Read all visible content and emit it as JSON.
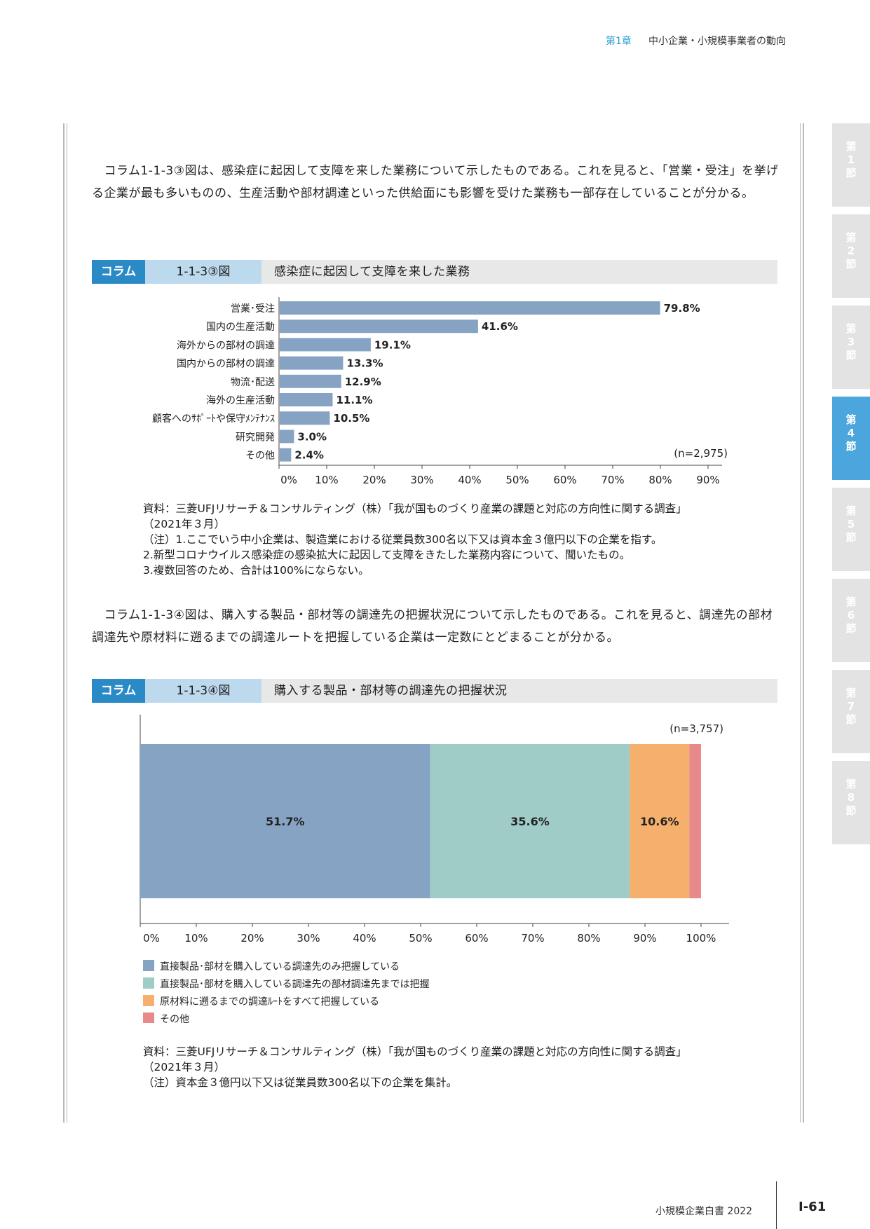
{
  "header": {
    "chapter": "第1章",
    "title": "中小企業・小規模事業者の動向"
  },
  "side_tabs": [
    {
      "label": "第\n1\n節",
      "active": false
    },
    {
      "label": "第\n2\n節",
      "active": false
    },
    {
      "label": "第\n3\n節",
      "active": false
    },
    {
      "label": "第\n4\n節",
      "active": true
    },
    {
      "label": "第\n5\n節",
      "active": false
    },
    {
      "label": "第\n6\n節",
      "active": false
    },
    {
      "label": "第\n7\n節",
      "active": false
    },
    {
      "label": "第\n8\n節",
      "active": false
    }
  ],
  "para1": "　コラム1-1-3③図は、感染症に起因して支障を来した業務について示したものである。これを見ると、「営業・受注」を挙げる企業が最も多いものの、生産活動や部材調達といった供給面にも影響を受けた業務も一部存在していることが分かる。",
  "fig1": {
    "tag": "コラム",
    "number": "1-1-3③図",
    "title": "感染症に起因して支障を来した業務",
    "n_label": "(n=2,975)",
    "notes": [
      "資料：三菱UFJリサーチ＆コンサルティング（株）「我が国ものづくり産業の課題と対応の方向性に関する調査」",
      "（2021年３月）",
      "（注）1.ここでいう中小企業は、製造業における従業員数300名以下又は資本金３億円以下の企業を指す。",
      "2.新型コロナウイルス感染症の感染拡大に起因して支障をきたした業務内容について、聞いたもの。",
      "3.複数回答のため、合計は100%にならない。"
    ]
  },
  "para2": "　コラム1-1-3④図は、購入する製品・部材等の調達先の把握状況について示したものである。これを見ると、調達先の部材調達先や原材料に遡るまでの調達ルートを把握している企業は一定数にとどまることが分かる。",
  "fig2": {
    "tag": "コラム",
    "number": "1-1-3④図",
    "title": "購入する製品・部材等の調達先の把握状況",
    "n_label": "(n=3,757)",
    "notes": [
      "資料：三菱UFJリサーチ＆コンサルティング（株）「我が国ものづくり産業の課題と対応の方向性に関する調査」",
      "（2021年３月）",
      "（注）資本金３億円以下又は従業員数300名以下の企業を集計。"
    ]
  },
  "chart_data": [
    {
      "type": "bar",
      "orientation": "horizontal",
      "categories": [
        "営業･受注",
        "国内の生産活動",
        "海外からの部材の調達",
        "国内からの部材の調達",
        "物流･配送",
        "海外の生産活動",
        "顧客へのｻﾎﾟｰﾄや保守ﾒﾝﾃﾅﾝｽ",
        "研究開発",
        "その他"
      ],
      "values": [
        79.8,
        41.6,
        19.1,
        13.3,
        12.9,
        11.1,
        10.5,
        3.0,
        2.4
      ],
      "value_labels": [
        "79.8%",
        "41.6%",
        "19.1%",
        "13.3%",
        "12.9%",
        "11.1%",
        "10.5%",
        "3.0%",
        "2.4%"
      ],
      "xlim": [
        0,
        90
      ],
      "xticks": [
        "0%",
        "10%",
        "20%",
        "30%",
        "40%",
        "50%",
        "60%",
        "70%",
        "80%",
        "90%"
      ],
      "color": "#86a3c4"
    },
    {
      "type": "bar",
      "orientation": "horizontal-stacked-100",
      "series": [
        {
          "name": "直接製品･部材を購入している調達先のみ把握している",
          "value": 51.7,
          "label": "51.7%",
          "color": "#86a3c4"
        },
        {
          "name": "直接製品･部材を購入している調達先の部材調達先までは把握",
          "value": 35.6,
          "label": "35.6%",
          "color": "#a0ccc8"
        },
        {
          "name": "原材料に遡るまでの調達ﾙｰﾄをすべて把握している",
          "value": 10.6,
          "label": "10.6%",
          "color": "#f4b06c"
        },
        {
          "name": "その他",
          "value": 2.1,
          "label": "",
          "color": "#e88a8a"
        }
      ],
      "xlim": [
        0,
        100
      ],
      "xticks": [
        "0%",
        "10%",
        "20%",
        "30%",
        "40%",
        "50%",
        "60%",
        "70%",
        "80%",
        "90%",
        "100%"
      ]
    }
  ],
  "footer": {
    "book": "小規模企業白書 2022",
    "page": "Ⅰ-61"
  }
}
